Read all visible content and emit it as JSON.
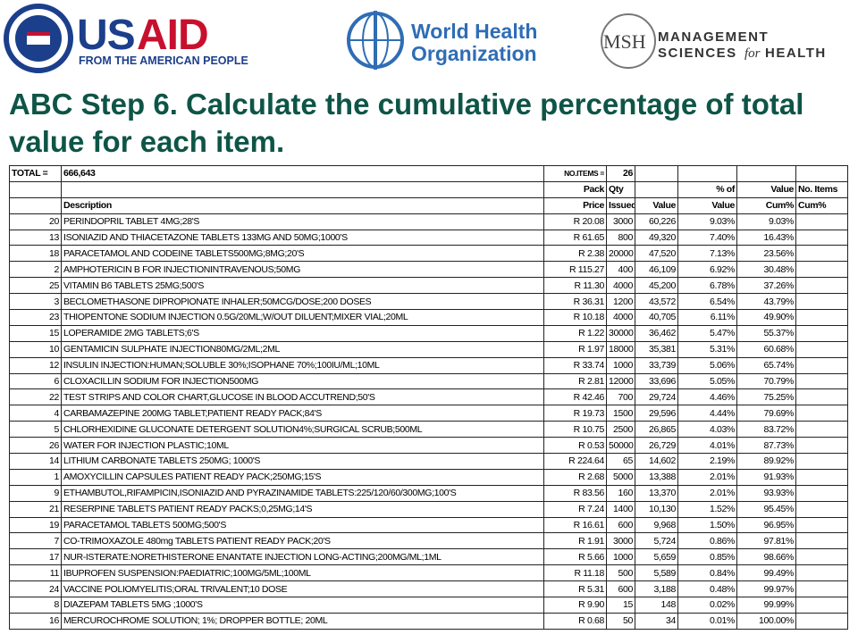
{
  "logos": {
    "usaid": {
      "us": "US",
      "aid": "AID",
      "tagline": "FROM THE AMERICAN PEOPLE"
    },
    "who": {
      "line1": "World Health",
      "line2": "Organization"
    },
    "msh": {
      "mark": "MSH",
      "line1": "MANAGEMENT",
      "line2a": "SCIENCES",
      "line2b": "for",
      "line2c": "HEALTH"
    }
  },
  "title": "ABC Step 6. Calculate the cumulative percentage of total value for each item.",
  "table": {
    "total": {
      "total_label": "TOTAL =",
      "total": "666,643",
      "items_label": "NO.ITEMS =",
      "items": "26"
    },
    "headers": [
      {
        "price": "Pack",
        "qty": "Qty",
        "pct": "% of",
        "cum": "Value",
        "items": "No. Items"
      },
      {
        "description": "Description",
        "price": "Price",
        "qty": "Issued",
        "value": "Value",
        "pct": "Value",
        "cum": "Cum%",
        "items": "Cum%"
      }
    ],
    "rows": [
      [
        "20",
        "PERINDOPRIL TABLET 4MG;28'S",
        "R 20.08",
        "3000",
        "60,226",
        "9.03%",
        "9.03%"
      ],
      [
        "13",
        "ISONIAZID AND THIACETAZONE TABLETS 133MG AND 50MG;1000'S",
        "R 61.65",
        "800",
        "49,320",
        "7.40%",
        "16.43%"
      ],
      [
        "18",
        "PARACETAMOL AND CODEINE TABLETS500MG;8MG;20'S",
        "R 2.38",
        "20000",
        "47,520",
        "7.13%",
        "23.56%"
      ],
      [
        "2",
        "AMPHOTERICIN B FOR INJECTIONINTRAVENOUS;50MG",
        "R 115.27",
        "400",
        "46,109",
        "6.92%",
        "30.48%"
      ],
      [
        "25",
        "VITAMIN B6 TABLETS 25MG;500'S",
        "R 11.30",
        "4000",
        "45,200",
        "6.78%",
        "37.26%"
      ],
      [
        "3",
        "BECLOMETHASONE DIPROPIONATE INHALER;50MCG/DOSE;200 DOSES",
        "R 36.31",
        "1200",
        "43,572",
        "6.54%",
        "43.79%"
      ],
      [
        "23",
        "THIOPENTONE SODIUM INJECTION 0.5G/20ML;W/OUT DILUENT;MIXER VIAL;20ML",
        "R 10.18",
        "4000",
        "40,705",
        "6.11%",
        "49.90%"
      ],
      [
        "15",
        "LOPERAMIDE 2MG TABLETS;6'S",
        "R 1.22",
        "30000",
        "36,462",
        "5.47%",
        "55.37%"
      ],
      [
        "10",
        "GENTAMICIN SULPHATE INJECTION80MG/2ML;2ML",
        "R 1.97",
        "18000",
        "35,381",
        "5.31%",
        "60.68%"
      ],
      [
        "12",
        "INSULIN INJECTION:HUMAN;SOLUBLE 30%;ISOPHANE 70%;100IU/ML;10ML",
        "R 33.74",
        "1000",
        "33,739",
        "5.06%",
        "65.74%"
      ],
      [
        "6",
        "CLOXACILLIN SODIUM FOR INJECTION500MG",
        "R 2.81",
        "12000",
        "33,696",
        "5.05%",
        "70.79%"
      ],
      [
        "22",
        "TEST STRIPS AND COLOR CHART,GLUCOSE IN BLOOD ACCUTREND;50'S",
        "R 42.46",
        "700",
        "29,724",
        "4.46%",
        "75.25%"
      ],
      [
        "4",
        "CARBAMAZEPINE 200MG TABLET;PATIENT READY PACK;84'S",
        "R 19.73",
        "1500",
        "29,596",
        "4.44%",
        "79.69%"
      ],
      [
        "5",
        "CHLORHEXIDINE GLUCONATE DETERGENT SOLUTION4%;SURGICAL SCRUB;500ML",
        "R 10.75",
        "2500",
        "26,865",
        "4.03%",
        "83.72%"
      ],
      [
        "26",
        "WATER FOR INJECTION PLASTIC;10ML",
        "R 0.53",
        "50000",
        "26,729",
        "4.01%",
        "87.73%"
      ],
      [
        "14",
        "LITHIUM CARBONATE TABLETS 250MG; 1000'S",
        "R 224.64",
        "65",
        "14,602",
        "2.19%",
        "89.92%"
      ],
      [
        "1",
        "AMOXYCILLIN CAPSULES PATIENT READY PACK;250MG;15'S",
        "R 2.68",
        "5000",
        "13,388",
        "2.01%",
        "91.93%"
      ],
      [
        "9",
        "ETHAMBUTOL,RIFAMPICIN,ISONIAZID AND PYRAZINAMIDE TABLETS:225/120/60/300MG;100'S",
        "R 83.56",
        "160",
        "13,370",
        "2.01%",
        "93.93%"
      ],
      [
        "21",
        "RESERPINE TABLETS PATIENT READY PACKS;0,25MG;14'S",
        "R 7.24",
        "1400",
        "10,130",
        "1.52%",
        "95.45%"
      ],
      [
        "19",
        "PARACETAMOL TABLETS 500MG;500'S",
        "R 16.61",
        "600",
        "9,968",
        "1.50%",
        "96.95%"
      ],
      [
        "7",
        "CO-TRIMOXAZOLE 480mg TABLETS PATIENT READY PACK;20'S",
        "R 1.91",
        "3000",
        "5,724",
        "0.86%",
        "97.81%"
      ],
      [
        "17",
        "NUR-ISTERATE:NORETHISTERONE ENANTATE INJECTION LONG-ACTING;200MG/ML;1ML",
        "R 5.66",
        "1000",
        "5,659",
        "0.85%",
        "98.66%"
      ],
      [
        "11",
        "IBUPROFEN SUSPENSION:PAEDIATRIC;100MG/5ML;100ML",
        "R 11.18",
        "500",
        "5,589",
        "0.84%",
        "99.49%"
      ],
      [
        "24",
        "VACCINE POLIOMYELITIS;ORAL TRIVALENT;10 DOSE",
        "R 5.31",
        "600",
        "3,188",
        "0.48%",
        "99.97%"
      ],
      [
        "8",
        "DIAZEPAM TABLETS 5MG ;1000'S",
        "R 9.90",
        "15",
        "148",
        "0.02%",
        "99.99%"
      ],
      [
        "16",
        "MERCUROCHROME SOLUTION; 1%; DROPPER BOTTLE; 20ML",
        "R 0.68",
        "50",
        "34",
        "0.01%",
        "100.00%"
      ]
    ]
  }
}
